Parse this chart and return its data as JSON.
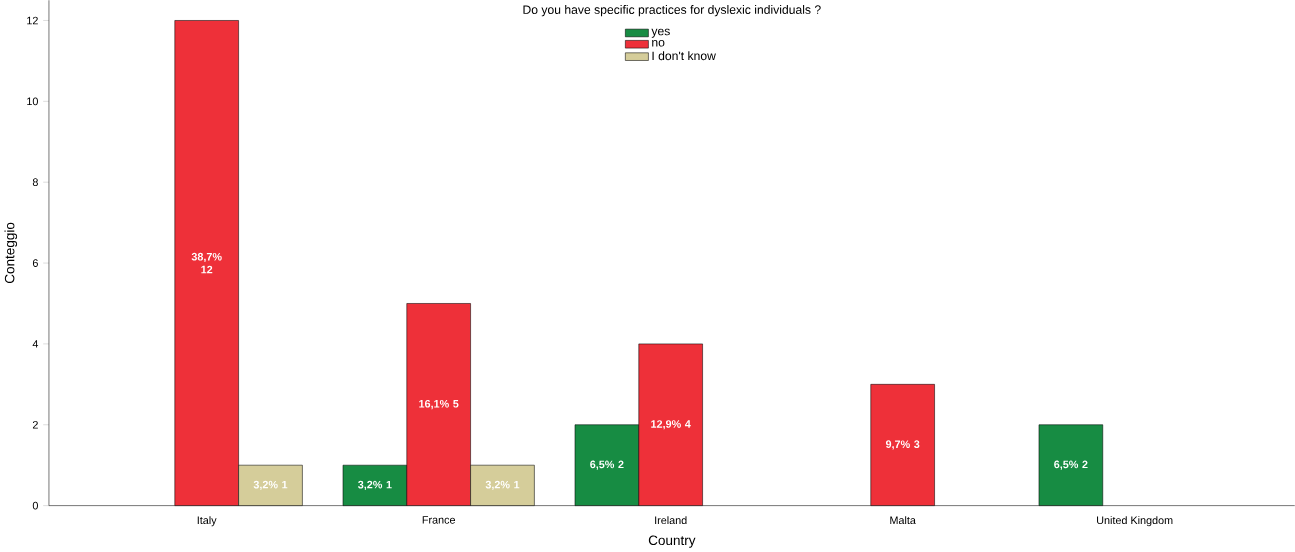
{
  "chart_data": {
    "type": "bar",
    "legend_title": "Do you have specific practices for dyslexic individuals ?",
    "xlabel": "Country",
    "ylabel": "Conteggio",
    "categories": [
      "Italy",
      "France",
      "Ireland",
      "Malta",
      "United Kingdom"
    ],
    "series": [
      {
        "name": "yes",
        "color": "#178c43",
        "values": [
          null,
          1,
          2,
          null,
          2
        ],
        "value_labels": [
          null,
          "3,2% 1",
          "6,5% 2",
          null,
          "6,5% 2"
        ]
      },
      {
        "name": "no",
        "color": "#ee3039",
        "values": [
          12,
          5,
          4,
          3,
          null
        ],
        "value_labels": [
          "38,7% 12",
          "16,1% 5",
          "12,9% 4",
          "9,7% 3",
          null
        ]
      },
      {
        "name": "I don't know",
        "color": "#d5cd9a",
        "values": [
          1,
          1,
          null,
          null,
          null
        ],
        "value_labels": [
          "3,2% 1",
          "3,2% 1",
          null,
          null,
          null
        ]
      }
    ],
    "ylim": [
      0,
      12.5
    ],
    "yticks": [
      0,
      2,
      4,
      6,
      8,
      10,
      12
    ],
    "legend": "top"
  }
}
